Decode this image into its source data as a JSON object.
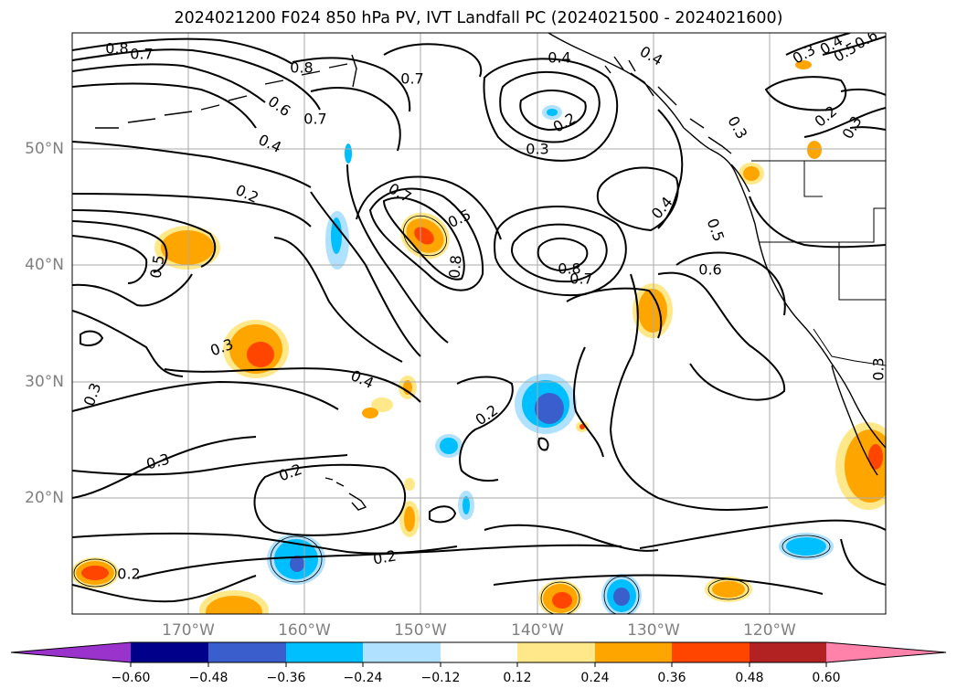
{
  "title": "2024021200 F024 850 hPa PV, IVT Landfall PC (2024021500 - 2024021600)",
  "map": {
    "lon_labels": [
      "170°W",
      "160°W",
      "150°W",
      "140°W",
      "130°W",
      "120°W"
    ],
    "lat_labels": [
      "50°N",
      "40°N",
      "30°N",
      "20°N"
    ],
    "contour_labels": [
      {
        "text": "0.8"
      },
      {
        "text": "0.7"
      },
      {
        "text": "0.8"
      },
      {
        "text": "0.7"
      },
      {
        "text": "0.6"
      },
      {
        "text": "0.7"
      },
      {
        "text": "0.4"
      },
      {
        "text": "0.2"
      },
      {
        "text": "0.4"
      },
      {
        "text": "0.5"
      },
      {
        "text": "0.4"
      },
      {
        "text": "0.2"
      },
      {
        "text": "0.3"
      },
      {
        "text": "0.7"
      },
      {
        "text": "0.5"
      },
      {
        "text": "0.8"
      },
      {
        "text": "0.8"
      },
      {
        "text": "0.7"
      },
      {
        "text": "0.4"
      },
      {
        "text": "0.6"
      },
      {
        "text": "0.5"
      },
      {
        "text": "0.3"
      },
      {
        "text": "0.3"
      },
      {
        "text": "0.4"
      },
      {
        "text": "0.5"
      },
      {
        "text": "0.6"
      },
      {
        "text": "0.2"
      },
      {
        "text": "0.3"
      },
      {
        "text": "0.3"
      },
      {
        "text": "0.4"
      },
      {
        "text": "0.3"
      },
      {
        "text": "0.2"
      },
      {
        "text": "0.3"
      },
      {
        "text": "0.2"
      },
      {
        "text": "0.3"
      },
      {
        "text": "0.2"
      },
      {
        "text": "0.2"
      }
    ]
  },
  "colorbar": {
    "tick_labels": [
      "−0.60",
      "−0.48",
      "−0.36",
      "−0.24",
      "−0.12",
      "0.12",
      "0.24",
      "0.36",
      "0.48",
      "0.60"
    ],
    "colors": [
      "#9933cc",
      "#00008b",
      "#3a5fcd",
      "#00bfff",
      "#b0e2ff",
      "#ffffff",
      "#ffe889",
      "#ffa500",
      "#ff4500",
      "#b22222",
      "#ff82ab"
    ]
  }
}
